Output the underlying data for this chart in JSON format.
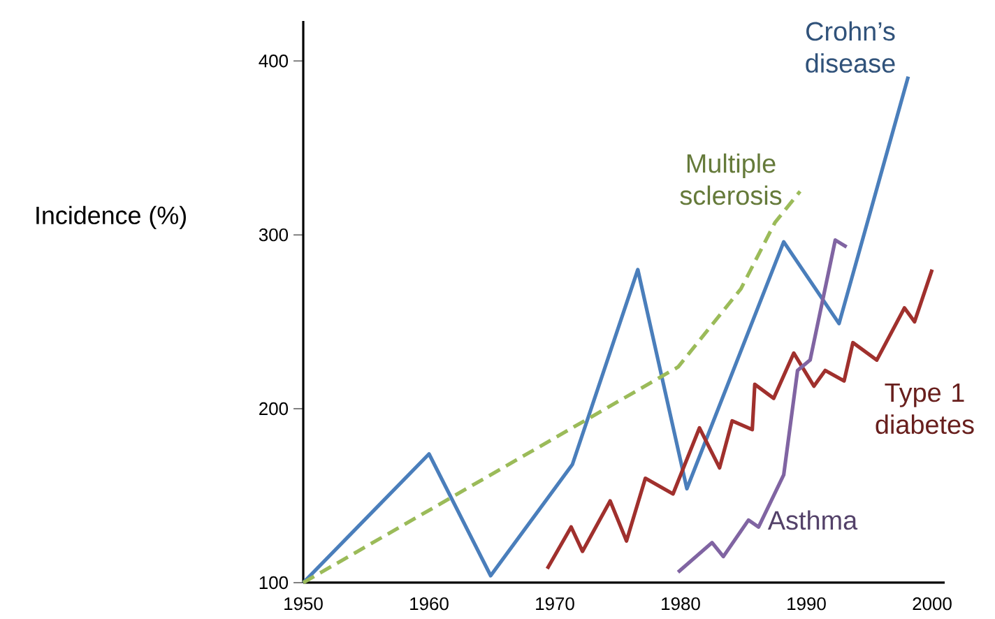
{
  "chart_data": {
    "type": "line",
    "ylabel": "Incidence (%)",
    "xlim": [
      1950,
      2001
    ],
    "ylim": [
      100,
      423
    ],
    "xticks": [
      1950,
      1960,
      1970,
      1980,
      1990,
      2000
    ],
    "yticks": [
      100,
      200,
      300,
      400
    ],
    "grid": false,
    "legend": false,
    "series": [
      {
        "name": "Crohn’s disease",
        "color": "#4a7ebb",
        "line_style": "solid",
        "x": [
          1950,
          1960,
          1964.9,
          1971.4,
          1976.6,
          1980.5,
          1988.2,
          1992.6,
          1998.1
        ],
        "values": [
          100,
          174,
          104,
          168,
          280,
          154,
          296,
          249,
          391
        ]
      },
      {
        "name": "Multiple sclerosis",
        "color": "#9bbb59",
        "line_style": "dashed",
        "x": [
          1950,
          1979.8,
          1984.8,
          1987.5,
          1989.5
        ],
        "values": [
          100,
          224,
          269,
          307,
          325
        ]
      },
      {
        "name": "Type 1 diabetes",
        "color": "#a0302d",
        "line_style": "solid",
        "x": [
          1969.4,
          1971.3,
          1972.2,
          1974.4,
          1975.7,
          1977.2,
          1979.4,
          1981.5,
          1983.1,
          1984.1,
          1985.7,
          1985.9,
          1987.4,
          1989,
          1990.6,
          1991.5,
          1993,
          1993.7,
          1995.6,
          1997.8,
          1998.6,
          2000
        ],
        "values": [
          108,
          132,
          118,
          147,
          124,
          160,
          151,
          189,
          166,
          193,
          188,
          214,
          206,
          232,
          213,
          222,
          216,
          238,
          228,
          258,
          250,
          280
        ]
      },
      {
        "name": "Asthma",
        "color": "#8064a2",
        "line_style": "solid",
        "x": [
          1979.8,
          1982.5,
          1983.4,
          1985.4,
          1986.2,
          1988.2,
          1989.3,
          1990.3,
          1992.3,
          1993.2
        ],
        "values": [
          106,
          123,
          115,
          136,
          132,
          162,
          222,
          228,
          297,
          293
        ]
      }
    ]
  }
}
